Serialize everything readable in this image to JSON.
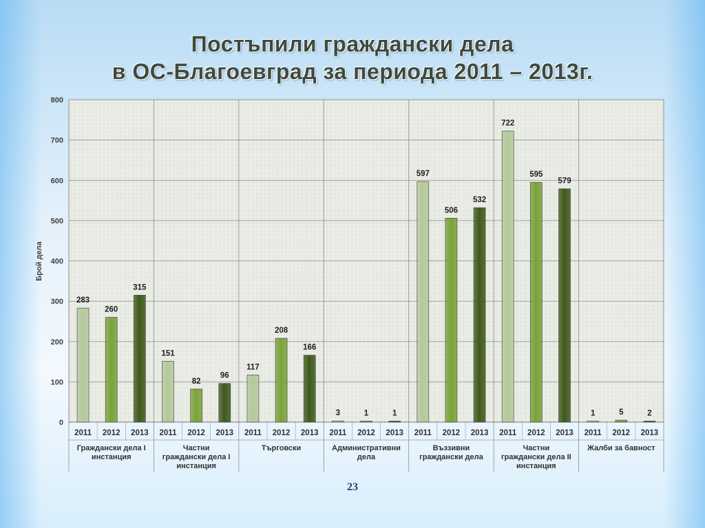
{
  "slide": {
    "title_line1": "Постъпили граждански дела",
    "title_line2": "в ОС-Благоевград  за периода 2011 – 2013г.",
    "page_number": "23"
  },
  "chart_data": {
    "type": "bar",
    "title": "Постъпили граждански дела в ОС-Благоевград  за периода 2011 – 2013г.",
    "ylabel": "Брой дела",
    "xlabel": "",
    "ylim": [
      0,
      800
    ],
    "yticks": [
      0,
      100,
      200,
      300,
      400,
      500,
      600,
      700,
      800
    ],
    "grid": true,
    "years": [
      "2011",
      "2012",
      "2013"
    ],
    "groups": [
      {
        "label": [
          "Граждански дела I",
          "инстанция"
        ],
        "values": [
          283,
          260,
          315
        ]
      },
      {
        "label": [
          "Частни",
          "граждански дела I",
          "инстанция"
        ],
        "values": [
          151,
          82,
          96
        ]
      },
      {
        "label": [
          "Търговски"
        ],
        "values": [
          117,
          208,
          166
        ]
      },
      {
        "label": [
          "Административни",
          "дела"
        ],
        "values": [
          3,
          1,
          1
        ]
      },
      {
        "label": [
          "Въззивни",
          "граждански дела"
        ],
        "values": [
          597,
          506,
          532
        ]
      },
      {
        "label": [
          "Частни",
          "граждански дела II",
          "инстанция"
        ],
        "values": [
          722,
          595,
          579
        ]
      },
      {
        "label": [
          "Жалби за бавност"
        ],
        "values": [
          1,
          5,
          2
        ]
      }
    ],
    "colors": {
      "2011": "#b5c99a",
      "2012": "#7aa339",
      "2013": "#3f5a1c"
    }
  }
}
